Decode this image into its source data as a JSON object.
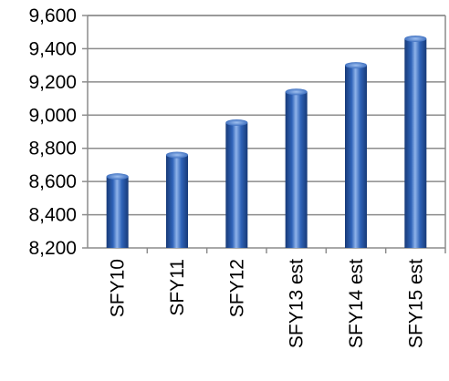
{
  "chart_data": {
    "type": "bar",
    "title": "",
    "xlabel": "",
    "ylabel": "",
    "categories": [
      "SFY10",
      "SFY11",
      "SFY12",
      "SFY13 est",
      "SFY14 est",
      "SFY15 est"
    ],
    "values": [
      8630,
      8760,
      8955,
      9140,
      9300,
      9460
    ],
    "ylim": [
      8200,
      9600
    ],
    "yticks": [
      8200,
      8400,
      8600,
      8800,
      9000,
      9200,
      9400,
      9600
    ],
    "ytick_labels": [
      "8,200",
      "8,400",
      "8,600",
      "8,800",
      "9,000",
      "9,200",
      "9,400",
      "9,600"
    ],
    "grid": true,
    "legend": "none",
    "bar_color": "#2f63b8",
    "bar_highlight": "#8fb3ea",
    "bar_shadow": "#173a78"
  }
}
